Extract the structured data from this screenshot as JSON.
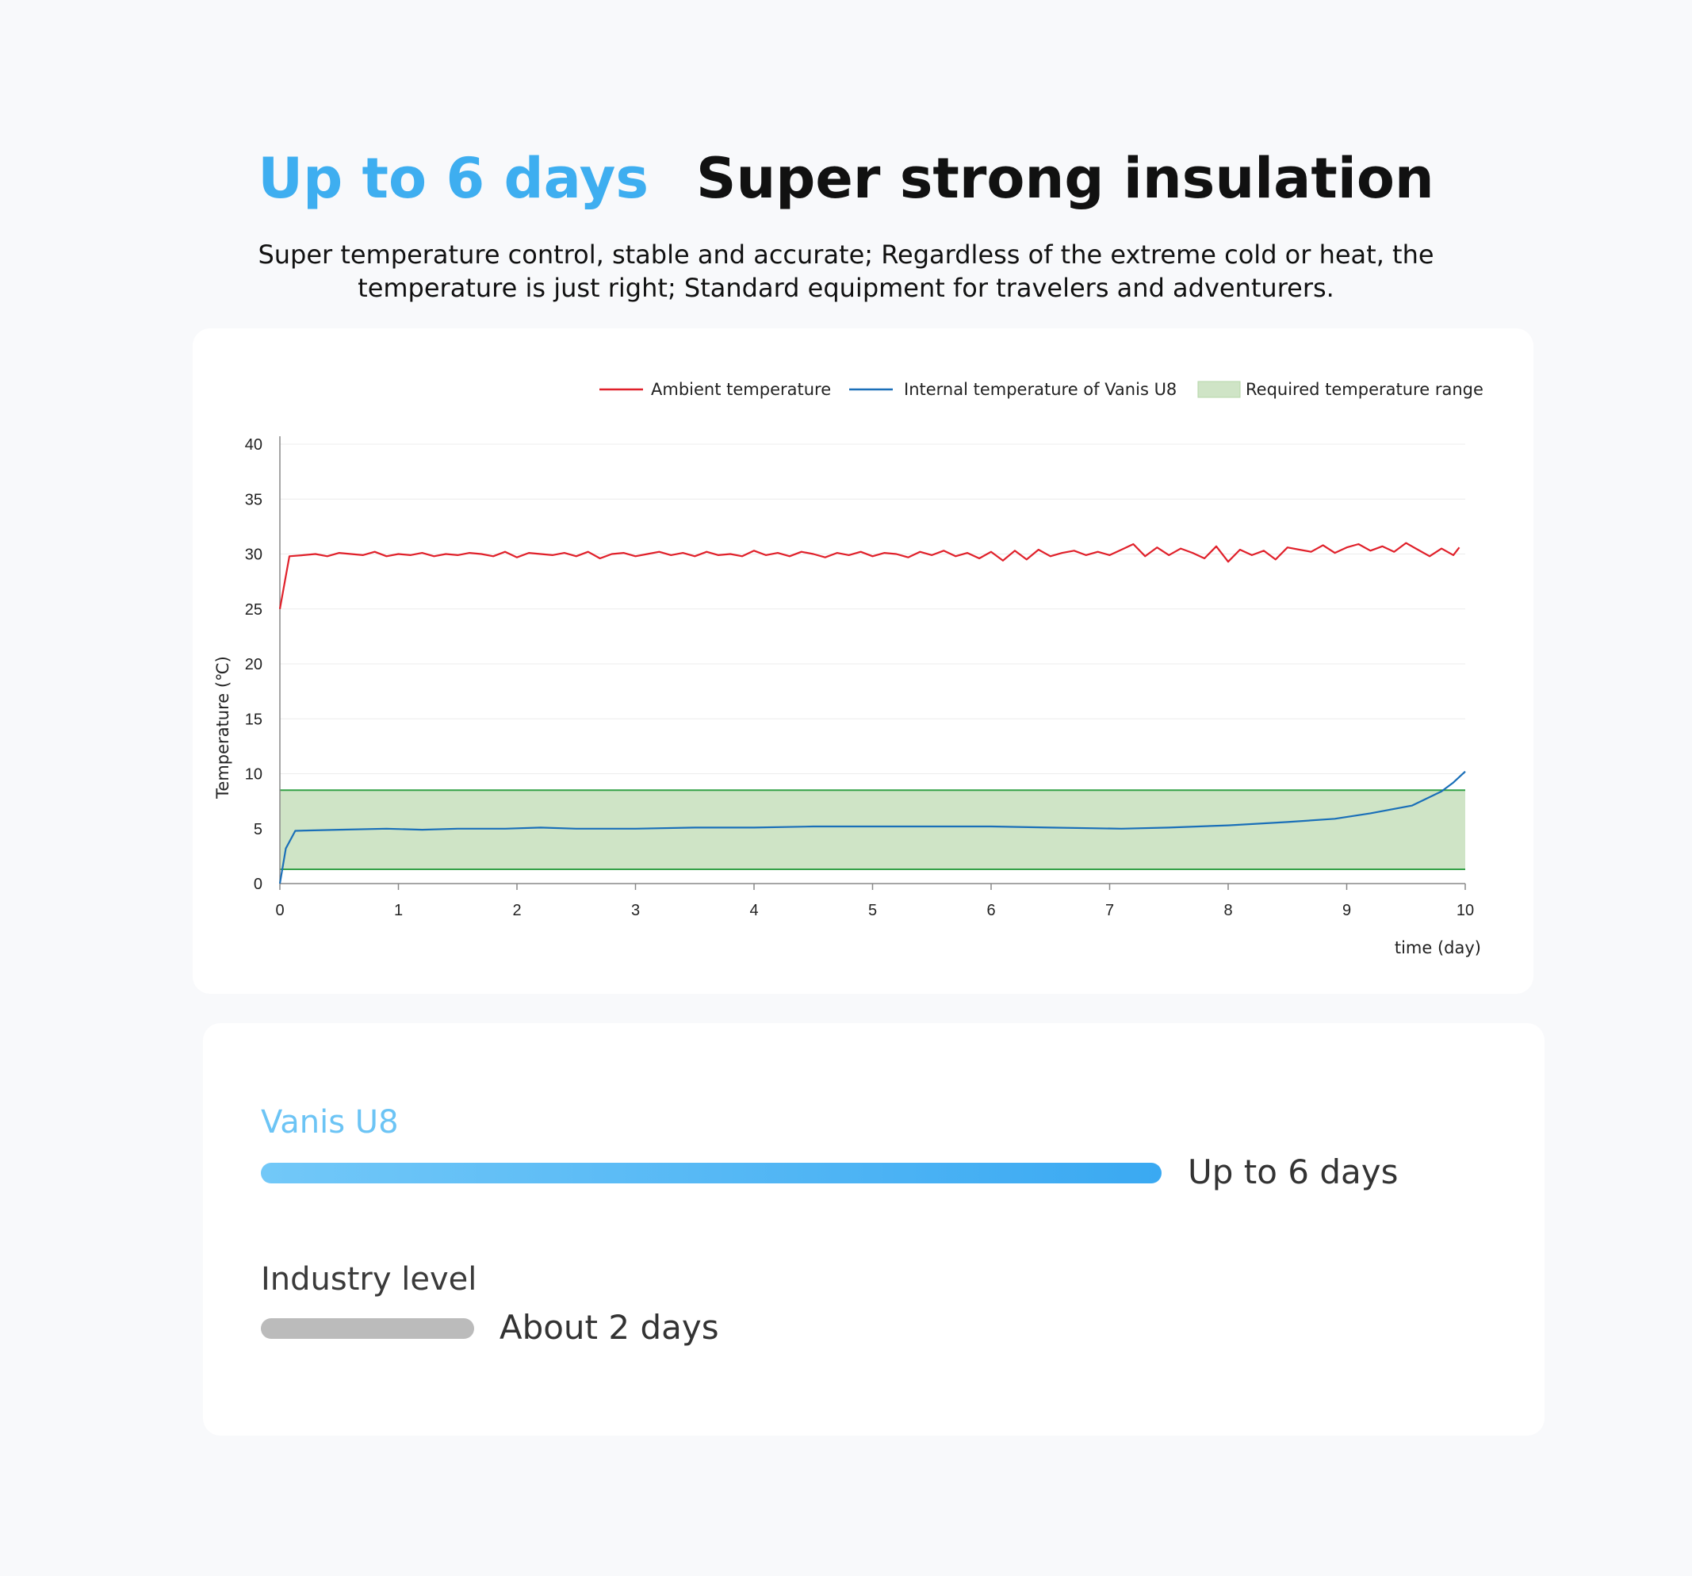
{
  "header": {
    "highlight": "Up to 6 days",
    "title": "Super strong insulation",
    "subtitle": "Super temperature control, stable and accurate; Regardless of the extreme cold or heat, the temperature is just right; Standard equipment for travelers and adventurers."
  },
  "chart_data": {
    "type": "line",
    "ylabel": "Temperature (℃)",
    "xlabel": "time (day)",
    "xlim": [
      0,
      10
    ],
    "ylim": [
      0,
      40
    ],
    "x_ticks": [
      "0",
      "1",
      "2",
      "3",
      "4",
      "5",
      "6",
      "7",
      "8",
      "9",
      "10"
    ],
    "y_ticks": [
      "0",
      "5",
      "10",
      "15",
      "20",
      "25",
      "30",
      "35",
      "40"
    ],
    "grid": "horizontal",
    "legend_position": "top-right",
    "series": [
      {
        "name": "Ambient temperature",
        "color": "#e0202a",
        "x": [
          0,
          0.08,
          0.2,
          0.3,
          0.4,
          0.5,
          0.6,
          0.7,
          0.8,
          0.9,
          1.0,
          1.1,
          1.2,
          1.3,
          1.4,
          1.5,
          1.6,
          1.7,
          1.8,
          1.9,
          2.0,
          2.1,
          2.2,
          2.3,
          2.4,
          2.5,
          2.6,
          2.7,
          2.8,
          2.9,
          3.0,
          3.1,
          3.2,
          3.3,
          3.4,
          3.5,
          3.6,
          3.7,
          3.8,
          3.9,
          4.0,
          4.1,
          4.2,
          4.3,
          4.4,
          4.5,
          4.6,
          4.7,
          4.8,
          4.9,
          5.0,
          5.1,
          5.2,
          5.3,
          5.4,
          5.5,
          5.6,
          5.7,
          5.8,
          5.9,
          6.0,
          6.1,
          6.2,
          6.3,
          6.4,
          6.5,
          6.6,
          6.7,
          6.8,
          6.9,
          7.0,
          7.1,
          7.2,
          7.3,
          7.4,
          7.5,
          7.6,
          7.7,
          7.8,
          7.9,
          8.0,
          8.1,
          8.2,
          8.3,
          8.4,
          8.5,
          8.6,
          8.7,
          8.8,
          8.9,
          9.0,
          9.1,
          9.2,
          9.3,
          9.4,
          9.5,
          9.6,
          9.7,
          9.8,
          9.9,
          9.95
        ],
        "y": [
          25,
          29.8,
          29.9,
          30.0,
          29.8,
          30.1,
          30.0,
          29.9,
          30.2,
          29.8,
          30.0,
          29.9,
          30.1,
          29.8,
          30.0,
          29.9,
          30.1,
          30.0,
          29.8,
          30.2,
          29.7,
          30.1,
          30.0,
          29.9,
          30.1,
          29.8,
          30.2,
          29.6,
          30.0,
          30.1,
          29.8,
          30.0,
          30.2,
          29.9,
          30.1,
          29.8,
          30.2,
          29.9,
          30.0,
          29.8,
          30.3,
          29.9,
          30.1,
          29.8,
          30.2,
          30.0,
          29.7,
          30.1,
          29.9,
          30.2,
          29.8,
          30.1,
          30.0,
          29.7,
          30.2,
          29.9,
          30.3,
          29.8,
          30.1,
          29.6,
          30.2,
          29.4,
          30.3,
          29.5,
          30.4,
          29.8,
          30.1,
          30.3,
          29.9,
          30.2,
          29.9,
          30.4,
          30.9,
          29.8,
          30.6,
          29.9,
          30.5,
          30.1,
          29.6,
          30.7,
          29.3,
          30.4,
          29.9,
          30.3,
          29.5,
          30.6,
          30.4,
          30.2,
          30.8,
          30.1,
          30.6,
          30.9,
          30.3,
          30.7,
          30.2,
          31.0,
          30.4,
          29.8,
          30.5,
          29.9,
          30.6
        ]
      },
      {
        "name": "Internal temperature of Vanis U8",
        "color": "#1a6fb8",
        "x": [
          0,
          0.05,
          0.13,
          0.5,
          0.9,
          1.2,
          1.5,
          1.9,
          2.2,
          2.5,
          3.0,
          3.5,
          4.0,
          4.5,
          5.0,
          5.5,
          6.0,
          6.5,
          7.1,
          7.5,
          8.0,
          8.5,
          8.9,
          9.2,
          9.55,
          9.8,
          9.9,
          10.0
        ],
        "y": [
          0,
          3.2,
          4.8,
          4.9,
          5.0,
          4.9,
          5.0,
          5.0,
          5.1,
          5.0,
          5.0,
          5.1,
          5.1,
          5.2,
          5.2,
          5.2,
          5.2,
          5.1,
          5.0,
          5.1,
          5.3,
          5.6,
          5.9,
          6.4,
          7.1,
          8.4,
          9.2,
          10.2
        ]
      }
    ],
    "bands": [
      {
        "name": "Required temperature range",
        "color": "#cfe4c6",
        "edge_color": "#33a046",
        "y_range": [
          1.3,
          8.5
        ]
      }
    ]
  },
  "comparison": {
    "product_label": "Vanis U8",
    "product_value": "Up to 6 days",
    "product_days": 6,
    "product_colors": [
      "#72c8f8",
      "#3aa9f2"
    ],
    "industry_label": "Industry level",
    "industry_value": "About 2 days",
    "industry_days": 2,
    "industry_color": "#bbbbbb"
  }
}
